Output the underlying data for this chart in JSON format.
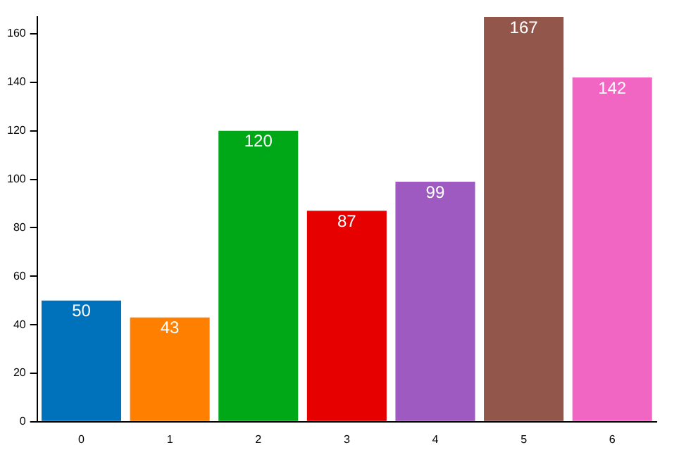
{
  "chart_data": {
    "type": "bar",
    "categories": [
      "0",
      "1",
      "2",
      "3",
      "4",
      "5",
      "6"
    ],
    "values": [
      50,
      43,
      120,
      87,
      99,
      167,
      142
    ],
    "colors": [
      "#0072bb",
      "#ff7f00",
      "#00a818",
      "#e60000",
      "#9e5ac0",
      "#93564a",
      "#f266c3"
    ],
    "ylim": [
      0,
      167
    ],
    "yticks": [
      0,
      20,
      40,
      60,
      80,
      100,
      120,
      140,
      160
    ],
    "grid": false,
    "legend": false,
    "data_labels": true
  }
}
